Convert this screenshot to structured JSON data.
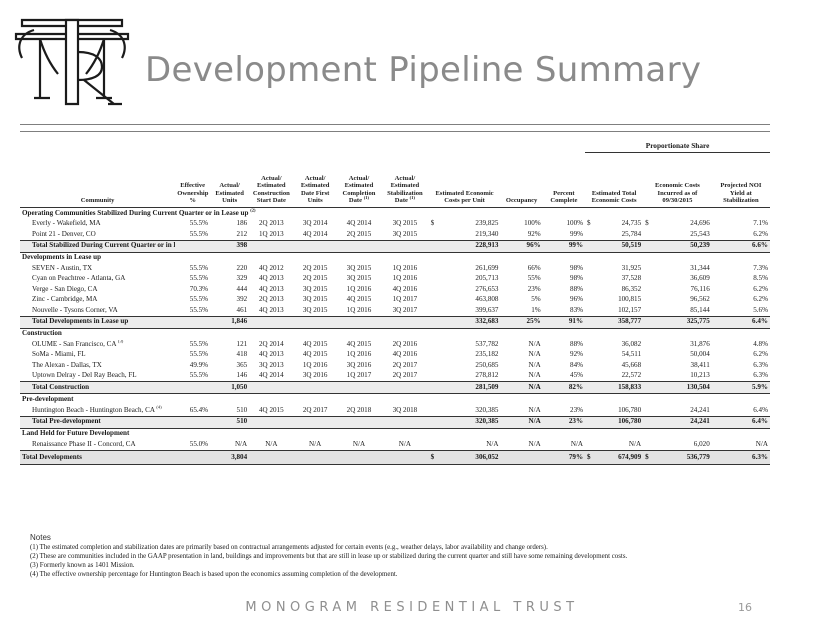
{
  "header": {
    "title": "Development Pipeline Summary"
  },
  "table": {
    "group_header": "Proportionate Share",
    "columns": {
      "community": "Community",
      "ownership": "Effective Ownership %",
      "units": "Actual/ Estimated Units",
      "start": "Actual/ Estimated Construction Start Date",
      "first": "Actual/ Estimated Date First Units",
      "completion": "Actual/ Estimated Completion Date",
      "completion_note": "(1)",
      "stabilization": "Actual/ Estimated Stabilization Date",
      "stabilization_note": "(1)",
      "cost_unit": "Estimated Economic Costs per Unit",
      "occupancy": "Occupancy",
      "complete": "Percent Complete",
      "total_costs": "Estimated Total Economic Costs",
      "incurred": "Economic Costs Incurred as of 09/30/2015",
      "noi": "Projected NOI Yield at Stabilization"
    },
    "sections": {
      "s1": {
        "title": "Operating Communities Stabilized During Current Quarter or in Lease up",
        "note": "(2)",
        "rows": [
          {
            "name": "Everly - Wakefield, MA",
            "note": "",
            "own": "55.5%",
            "units": "186",
            "start": "2Q 2013",
            "first": "3Q 2014",
            "comp": "4Q 2014",
            "stab": "3Q 2015",
            "cpu_sign": "$",
            "cpu": "239,825",
            "occ": "100%",
            "pct": "100%",
            "tot_sign": "$",
            "tot": "24,735",
            "inc_sign": "$",
            "inc": "24,696",
            "noi": "7.1%"
          },
          {
            "name": "Point 21 - Denver, CO",
            "note": "",
            "own": "55.5%",
            "units": "212",
            "start": "1Q 2013",
            "first": "4Q 2014",
            "comp": "2Q 2015",
            "stab": "3Q 2015",
            "cpu_sign": "",
            "cpu": "219,340",
            "occ": "92%",
            "pct": "99%",
            "tot_sign": "",
            "tot": "25,784",
            "inc_sign": "",
            "inc": "25,543",
            "noi": "6.2%"
          }
        ],
        "total": {
          "label": "Total Stabilized During Current Quarter or in Lease up",
          "units": "398",
          "cpu": "228,913",
          "occ": "96%",
          "pct": "99%",
          "tot": "50,519",
          "inc": "50,239",
          "noi": "6.6%"
        }
      },
      "s2": {
        "title": "Developments in Lease up",
        "note": "",
        "rows": [
          {
            "name": "SEVEN - Austin, TX",
            "note": "",
            "own": "55.5%",
            "units": "220",
            "start": "4Q 2012",
            "first": "2Q 2015",
            "comp": "3Q 2015",
            "stab": "1Q 2016",
            "cpu_sign": "",
            "cpu": "261,699",
            "occ": "66%",
            "pct": "98%",
            "tot_sign": "",
            "tot": "31,925",
            "inc_sign": "",
            "inc": "31,344",
            "noi": "7.3%"
          },
          {
            "name": "Cyan on Peachtree - Atlanta, GA",
            "note": "",
            "own": "55.5%",
            "units": "329",
            "start": "4Q 2013",
            "first": "2Q 2015",
            "comp": "3Q 2015",
            "stab": "1Q 2016",
            "cpu_sign": "",
            "cpu": "205,713",
            "occ": "55%",
            "pct": "98%",
            "tot_sign": "",
            "tot": "37,528",
            "inc_sign": "",
            "inc": "36,609",
            "noi": "8.5%"
          },
          {
            "name": "Verge - San Diego, CA",
            "note": "",
            "own": "70.3%",
            "units": "444",
            "start": "4Q 2013",
            "first": "3Q 2015",
            "comp": "1Q 2016",
            "stab": "4Q 2016",
            "cpu_sign": "",
            "cpu": "276,653",
            "occ": "23%",
            "pct": "88%",
            "tot_sign": "",
            "tot": "86,352",
            "inc_sign": "",
            "inc": "76,116",
            "noi": "6.2%"
          },
          {
            "name": "Zinc - Cambridge, MA",
            "note": "",
            "own": "55.5%",
            "units": "392",
            "start": "2Q 2013",
            "first": "3Q 2015",
            "comp": "4Q 2015",
            "stab": "1Q 2017",
            "cpu_sign": "",
            "cpu": "463,808",
            "occ": "5%",
            "pct": "96%",
            "tot_sign": "",
            "tot": "100,815",
            "inc_sign": "",
            "inc": "96,562",
            "noi": "6.2%"
          },
          {
            "name": "Nouvelle - Tysons Corner, VA",
            "note": "",
            "own": "55.5%",
            "units": "461",
            "start": "4Q 2013",
            "first": "3Q 2015",
            "comp": "1Q 2016",
            "stab": "3Q 2017",
            "cpu_sign": "",
            "cpu": "399,637",
            "occ": "1%",
            "pct": "83%",
            "tot_sign": "",
            "tot": "102,157",
            "inc_sign": "",
            "inc": "85,144",
            "noi": "5.6%"
          }
        ],
        "total": {
          "label": "Total Developments in Lease up",
          "units": "1,846",
          "cpu": "332,683",
          "occ": "25%",
          "pct": "91%",
          "tot": "358,777",
          "inc": "325,775",
          "noi": "6.4%"
        }
      },
      "s3": {
        "title": "Construction",
        "note": "",
        "rows": [
          {
            "name": "OLUME - San Francisco, CA",
            "note": "(3)",
            "own": "55.5%",
            "units": "121",
            "start": "2Q 2014",
            "first": "4Q 2015",
            "comp": "4Q 2015",
            "stab": "2Q 2016",
            "cpu_sign": "",
            "cpu": "537,782",
            "occ": "N/A",
            "pct": "88%",
            "tot_sign": "",
            "tot": "36,082",
            "inc_sign": "",
            "inc": "31,876",
            "noi": "4.8%"
          },
          {
            "name": "SoMa - Miami, FL",
            "note": "",
            "own": "55.5%",
            "units": "418",
            "start": "4Q 2013",
            "first": "4Q 2015",
            "comp": "1Q 2016",
            "stab": "4Q 2016",
            "cpu_sign": "",
            "cpu": "235,182",
            "occ": "N/A",
            "pct": "92%",
            "tot_sign": "",
            "tot": "54,511",
            "inc_sign": "",
            "inc": "50,004",
            "noi": "6.2%"
          },
          {
            "name": "The Alexan - Dallas, TX",
            "note": "",
            "own": "49.9%",
            "units": "365",
            "start": "3Q 2013",
            "first": "1Q 2016",
            "comp": "3Q 2016",
            "stab": "2Q 2017",
            "cpu_sign": "",
            "cpu": "250,685",
            "occ": "N/A",
            "pct": "84%",
            "tot_sign": "",
            "tot": "45,668",
            "inc_sign": "",
            "inc": "38,411",
            "noi": "6.3%"
          },
          {
            "name": "Uptown Delray - Del Ray Beach, FL",
            "note": "",
            "own": "55.5%",
            "units": "146",
            "start": "4Q 2014",
            "first": "3Q 2016",
            "comp": "1Q 2017",
            "stab": "2Q 2017",
            "cpu_sign": "",
            "cpu": "278,812",
            "occ": "N/A",
            "pct": "45%",
            "tot_sign": "",
            "tot": "22,572",
            "inc_sign": "",
            "inc": "10,213",
            "noi": "6.3%"
          }
        ],
        "total": {
          "label": "Total Construction",
          "units": "1,050",
          "cpu": "281,509",
          "occ": "N/A",
          "pct": "82%",
          "tot": "158,833",
          "inc": "130,504",
          "noi": "5.9%"
        }
      },
      "s4": {
        "title": "Pre-development",
        "note": "",
        "rows": [
          {
            "name": "Huntington Beach - Huntington Beach, CA",
            "note": "(4)",
            "own": "65.4%",
            "units": "510",
            "start": "4Q 2015",
            "first": "2Q 2017",
            "comp": "2Q 2018",
            "stab": "3Q 2018",
            "cpu_sign": "",
            "cpu": "320,385",
            "occ": "N/A",
            "pct": "23%",
            "tot_sign": "",
            "tot": "106,780",
            "inc_sign": "",
            "inc": "24,241",
            "noi": "6.4%"
          }
        ],
        "total": {
          "label": "Total Pre-development",
          "units": "510",
          "cpu": "320,385",
          "occ": "N/A",
          "pct": "23%",
          "tot": "106,780",
          "inc": "24,241",
          "noi": "6.4%"
        }
      },
      "s5": {
        "title": "Land Held for Future Development",
        "note": "",
        "rows": [
          {
            "name": "Renaissance Phase II - Concord, CA",
            "note": "",
            "own": "55.0%",
            "units": "N/A",
            "start": "N/A",
            "first": "N/A",
            "comp": "N/A",
            "stab": "N/A",
            "cpu_sign": "",
            "cpu": "N/A",
            "occ": "N/A",
            "pct": "N/A",
            "tot_sign": "",
            "tot": "N/A",
            "inc_sign": "",
            "inc": "6,020",
            "noi": "N/A"
          }
        ]
      }
    },
    "grand_total": {
      "label": "Total Developments",
      "units": "3,804",
      "cpu_sign": "$",
      "cpu": "306,052",
      "pct": "79%",
      "tot_sign": "$",
      "tot": "674,909",
      "inc_sign": "$",
      "inc": "536,779",
      "noi": "6.3%"
    }
  },
  "notes": {
    "heading": "Notes",
    "items": [
      "(1) The estimated completion and stabilization dates are primarily based on contractual arrangements adjusted for certain events (e.g., weather delays, labor availability and change orders).",
      "(2) These are communities included in the GAAP presentation in land, buildings and improvements but that are still in lease up or stabilized during the current quarter and still have some remaining development costs.",
      "(3) Formerly known as 1401 Mission.",
      "(4) The effective ownership percentage for Huntington Beach is based upon the economics assuming completion of the development."
    ]
  },
  "footer": {
    "company": "MONOGRAM RESIDENTIAL TRUST",
    "page": "16"
  }
}
